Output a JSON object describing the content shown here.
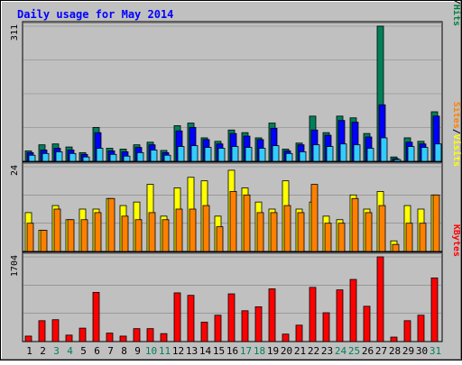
{
  "chart_data": {
    "type": "bar",
    "title": "Daily usage for May 2014",
    "days": [
      "1",
      "2",
      "3",
      "4",
      "5",
      "6",
      "7",
      "8",
      "9",
      "10",
      "11",
      "12",
      "13",
      "14",
      "15",
      "16",
      "17",
      "18",
      "19",
      "20",
      "21",
      "22",
      "23",
      "24",
      "25",
      "26",
      "27",
      "28",
      "29",
      "30",
      "31"
    ],
    "weekend_days": [
      "3",
      "4",
      "10",
      "11",
      "17",
      "18",
      "24",
      "25",
      "31"
    ],
    "panels": [
      {
        "id": "hits",
        "ymax_label": "311",
        "ymax": 311,
        "axis_label_parts": [
          {
            "text": "Pages",
            "color": "#33ccff"
          },
          {
            "text": "/",
            "color": "#000000"
          },
          {
            "text": "Files",
            "color": "#0000ff"
          },
          {
            "text": "/",
            "color": "#000000"
          },
          {
            "text": "Hits",
            "color": "#008040"
          }
        ],
        "series": [
          {
            "name": "Hits",
            "color": "#00805a",
            "values": [
              24,
              38,
              40,
              33,
              20,
              78,
              30,
              28,
              38,
              44,
              25,
              82,
              88,
              54,
              46,
              72,
              66,
              54,
              88,
              28,
              42,
              104,
              66,
              104,
              100,
              64,
              311,
              10,
              54,
              46,
              114
            ]
          },
          {
            "name": "Files",
            "color": "#0000ff",
            "values": [
              20,
              26,
              30,
              26,
              16,
              66,
              24,
              22,
              32,
              38,
              20,
              70,
              78,
              50,
              40,
              64,
              58,
              50,
              76,
              24,
              38,
              72,
              60,
              94,
              90,
              56,
              130,
              6,
              44,
              40,
              104
            ]
          },
          {
            "name": "Pages",
            "color": "#33ccff",
            "values": [
              14,
              18,
              22,
              18,
              10,
              30,
              16,
              12,
              20,
              26,
              14,
              34,
              36,
              32,
              30,
              34,
              32,
              30,
              36,
              18,
              22,
              38,
              34,
              40,
              38,
              30,
              54,
              4,
              34,
              32,
              40
            ]
          }
        ]
      },
      {
        "id": "visits",
        "ymax_label": "24",
        "ymax": 24,
        "axis_label_parts": [
          {
            "text": "Sites",
            "color": "#ff8000"
          },
          {
            "text": "/",
            "color": "#000000"
          },
          {
            "text": "Visits",
            "color": "#ffff00"
          }
        ],
        "series": [
          {
            "name": "Visits",
            "color": "#ffff00",
            "values": [
              11,
              6,
              13,
              9,
              12,
              12,
              15,
              13,
              14,
              19,
              10,
              18,
              21,
              20,
              10,
              23,
              18,
              14,
              12,
              20,
              12,
              14,
              10,
              9,
              16,
              12,
              17,
              3,
              13,
              12,
              16
            ]
          },
          {
            "name": "Sites",
            "color": "#ff8000",
            "values": [
              8,
              6,
              12,
              9,
              9,
              11,
              15,
              10,
              9,
              11,
              9,
              12,
              12,
              13,
              7,
              17,
              16,
              11,
              11,
              13,
              11,
              19,
              8,
              8,
              15,
              11,
              13,
              2,
              8,
              8,
              16
            ]
          }
        ]
      },
      {
        "id": "kbytes",
        "ymax_label": "1704",
        "ymax": 1704,
        "axis_label_parts": [
          {
            "text": "KBytes",
            "color": "#ff0000"
          }
        ],
        "series": [
          {
            "name": "KBytes",
            "color": "#ff0000",
            "values": [
              110,
              420,
              440,
              130,
              270,
              990,
              170,
              110,
              260,
              260,
              160,
              980,
              930,
              390,
              530,
              960,
              620,
              700,
              1060,
              150,
              330,
              1090,
              580,
              1040,
              1250,
              710,
              1704,
              90,
              420,
              530,
              1280
            ]
          }
        ]
      }
    ]
  }
}
